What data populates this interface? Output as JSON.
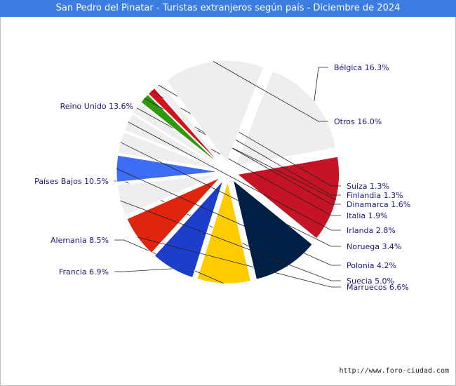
{
  "title": "San Pedro del Pinatar - Turistas extranjeros según país - Diciembre de 2024",
  "source": "http://www.foro-ciudad.com",
  "chart_data": {
    "type": "pie",
    "title": "San Pedro del Pinatar - Turistas extranjeros según país - Diciembre de 2024",
    "slices": [
      {
        "name": "Bélgica",
        "value": 16.3,
        "label": "Bélgica 16.3%",
        "color": "#eeeeee"
      },
      {
        "name": "Reino Unido",
        "value": 13.6,
        "label": "Reino Unido 13.6%",
        "color": "#c41425"
      },
      {
        "name": "Países Bajos",
        "value": 10.5,
        "label": "Países Bajos 10.5%",
        "color": "#001f46"
      },
      {
        "name": "Alemania",
        "value": 8.5,
        "label": "Alemania 8.5%",
        "color": "#ffcc00"
      },
      {
        "name": "Francia",
        "value": 6.9,
        "label": "Francia 6.9%",
        "color": "#1c3ecb"
      },
      {
        "name": "Marruecos",
        "value": 6.6,
        "label": "Marruecos 6.6%",
        "color": "#e0250f"
      },
      {
        "name": "Suecia",
        "value": 5.0,
        "label": "Suecia 5.0%",
        "color": "#eeeeee"
      },
      {
        "name": "Polonia",
        "value": 4.2,
        "label": "Polonia 4.2%",
        "color": "#3d6cf5"
      },
      {
        "name": "Noruega",
        "value": 3.4,
        "label": "Noruega 3.4%",
        "color": "#eeeeee"
      },
      {
        "name": "Irlanda",
        "value": 2.8,
        "label": "Irlanda 2.8%",
        "color": "#eeeeee"
      },
      {
        "name": "Italia",
        "value": 1.9,
        "label": "Italia 1.9%",
        "color": "#eeeeee"
      },
      {
        "name": "Dinamarca",
        "value": 1.6,
        "label": "Dinamarca 1.6%",
        "color": "#2e9a0a"
      },
      {
        "name": "Finlandia",
        "value": 1.3,
        "label": "Finlandia 1.3%",
        "color": "#d4111f"
      },
      {
        "name": "Suiza",
        "value": 1.3,
        "label": "Suiza 1.3%",
        "color": "#eeeeee"
      },
      {
        "name": "Otros",
        "value": 16.0,
        "label": "Otros 16.0%",
        "color": "#eeeeee"
      }
    ]
  }
}
